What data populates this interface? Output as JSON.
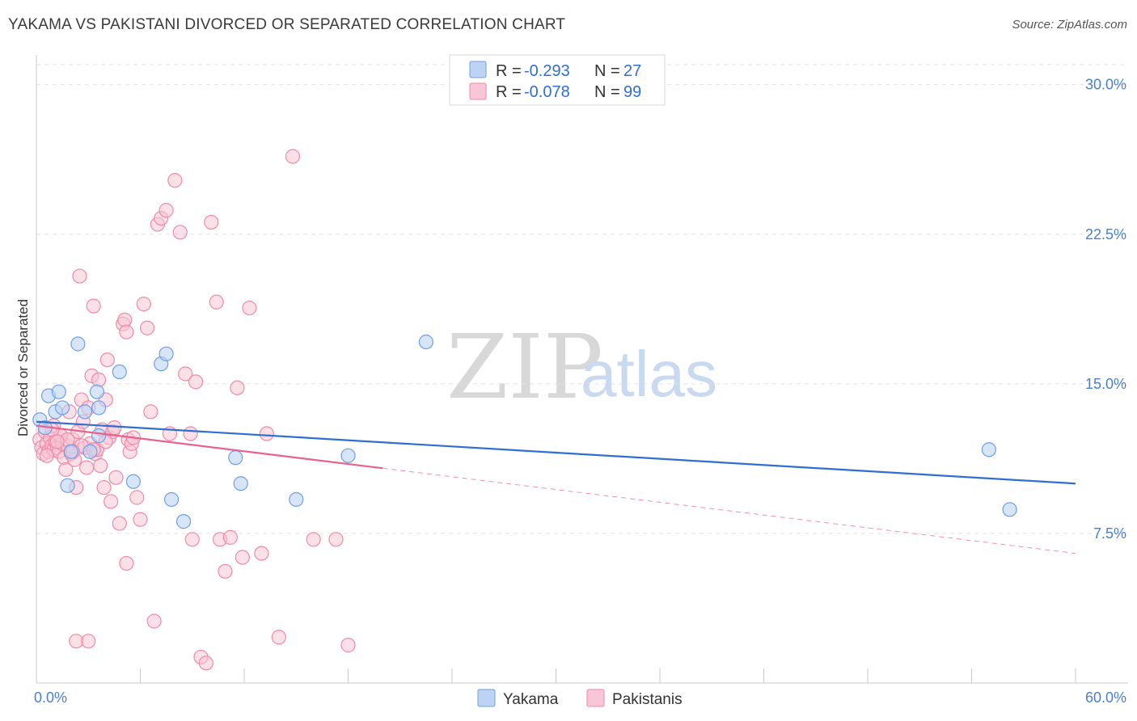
{
  "title": "YAKAMA VS PAKISTANI DIVORCED OR SEPARATED CORRELATION CHART",
  "source": "Source: ZipAtlas.com",
  "watermark": {
    "zip": "ZIP",
    "atlas": "atlas"
  },
  "colors": {
    "yakama": "#6f9fe6",
    "yakama_fill": "#bcd3f5",
    "yakama_line": "#2f6fcf",
    "pakistanis": "#ef8aaa",
    "pakistanis_fill": "#f8c6d6",
    "pakistanis_line": "#e8628e"
  },
  "legend": {
    "rows": [
      {
        "r_label": "R =",
        "r_value": "-0.293",
        "n_label": "N =",
        "n_value": "27"
      },
      {
        "r_label": "R =",
        "r_value": "-0.078",
        "n_label": "N =",
        "n_value": "99"
      }
    ]
  },
  "bottom_legend": [
    "Yakama",
    "Pakistanis"
  ],
  "chart_data": {
    "type": "scatter",
    "title": "YAKAMA VS PAKISTANI DIVORCED OR SEPARATED CORRELATION CHART",
    "xlabel": "",
    "ylabel": "Divorced or Separated",
    "xlim": [
      0,
      60
    ],
    "ylim": [
      0,
      31
    ],
    "x_tick_labels": [
      "0.0%",
      "60.0%"
    ],
    "y_ticks": [
      7.5,
      15.0,
      22.5,
      30.0
    ],
    "y_tick_labels": [
      "7.5%",
      "15.0%",
      "22.5%",
      "30.0%"
    ],
    "series": [
      {
        "name": "Yakama",
        "r": -0.293,
        "n": 27,
        "trend": {
          "x": [
            0,
            60
          ],
          "y": [
            13.1,
            10.0
          ],
          "dashed_from": null
        },
        "points": [
          [
            0.2,
            13.2
          ],
          [
            0.5,
            12.8
          ],
          [
            0.7,
            14.4
          ],
          [
            1.1,
            13.6
          ],
          [
            1.3,
            14.6
          ],
          [
            1.5,
            13.8
          ],
          [
            1.8,
            9.9
          ],
          [
            2.0,
            11.6
          ],
          [
            2.4,
            17.0
          ],
          [
            2.8,
            13.6
          ],
          [
            3.1,
            11.6
          ],
          [
            3.5,
            14.6
          ],
          [
            3.6,
            12.4
          ],
          [
            3.6,
            13.8
          ],
          [
            4.8,
            15.6
          ],
          [
            5.6,
            10.1
          ],
          [
            7.2,
            16.0
          ],
          [
            7.5,
            16.5
          ],
          [
            7.8,
            9.2
          ],
          [
            8.5,
            8.1
          ],
          [
            11.5,
            11.3
          ],
          [
            11.8,
            10.0
          ],
          [
            15.0,
            9.2
          ],
          [
            18.0,
            11.4
          ],
          [
            22.5,
            17.1
          ],
          [
            55.0,
            11.7
          ],
          [
            56.2,
            8.7
          ]
        ]
      },
      {
        "name": "Pakistanis",
        "r": -0.078,
        "n": 99,
        "trend": {
          "x": [
            0,
            60
          ],
          "y": [
            12.9,
            6.5
          ],
          "dashed_from": 20
        },
        "points": [
          [
            0.2,
            12.2
          ],
          [
            0.3,
            11.8
          ],
          [
            0.4,
            11.5
          ],
          [
            0.5,
            12.6
          ],
          [
            0.6,
            12.0
          ],
          [
            0.7,
            11.6
          ],
          [
            0.8,
            12.3
          ],
          [
            0.9,
            11.9
          ],
          [
            1.0,
            11.7
          ],
          [
            1.0,
            12.9
          ],
          [
            1.1,
            12.1
          ],
          [
            1.2,
            11.8
          ],
          [
            1.3,
            11.6
          ],
          [
            1.4,
            12.4
          ],
          [
            1.5,
            12.0
          ],
          [
            1.6,
            11.3
          ],
          [
            1.7,
            10.7
          ],
          [
            1.8,
            11.9
          ],
          [
            1.9,
            13.6
          ],
          [
            2.0,
            11.5
          ],
          [
            2.1,
            12.2
          ],
          [
            2.2,
            11.2
          ],
          [
            2.3,
            9.8
          ],
          [
            2.4,
            12.6
          ],
          [
            2.5,
            20.4
          ],
          [
            2.6,
            14.2
          ],
          [
            2.7,
            13.1
          ],
          [
            2.8,
            11.8
          ],
          [
            2.9,
            10.8
          ],
          [
            3.0,
            13.8
          ],
          [
            3.1,
            12.0
          ],
          [
            3.2,
            15.4
          ],
          [
            3.3,
            18.9
          ],
          [
            3.4,
            11.5
          ],
          [
            3.5,
            11.7
          ],
          [
            3.6,
            15.2
          ],
          [
            3.7,
            10.9
          ],
          [
            3.8,
            12.7
          ],
          [
            3.9,
            9.8
          ],
          [
            4.0,
            14.2
          ],
          [
            4.1,
            16.2
          ],
          [
            4.2,
            12.3
          ],
          [
            4.3,
            9.1
          ],
          [
            4.4,
            12.6
          ],
          [
            4.5,
            12.8
          ],
          [
            4.6,
            10.3
          ],
          [
            4.8,
            8.0
          ],
          [
            5.0,
            18.0
          ],
          [
            5.1,
            18.2
          ],
          [
            5.2,
            17.6
          ],
          [
            5.3,
            12.2
          ],
          [
            5.4,
            11.6
          ],
          [
            5.5,
            12.0
          ],
          [
            5.6,
            12.3
          ],
          [
            5.8,
            9.3
          ],
          [
            6.0,
            8.2
          ],
          [
            6.2,
            19.0
          ],
          [
            6.4,
            17.8
          ],
          [
            6.6,
            13.6
          ],
          [
            6.8,
            3.1
          ],
          [
            7.0,
            23.0
          ],
          [
            7.2,
            23.3
          ],
          [
            7.5,
            23.7
          ],
          [
            7.7,
            12.5
          ],
          [
            8.0,
            25.2
          ],
          [
            8.3,
            22.6
          ],
          [
            8.6,
            15.5
          ],
          [
            8.9,
            12.5
          ],
          [
            9.2,
            15.1
          ],
          [
            9.5,
            1.3
          ],
          [
            9.8,
            1.0
          ],
          [
            10.1,
            23.1
          ],
          [
            10.4,
            19.1
          ],
          [
            10.6,
            7.2
          ],
          [
            10.9,
            5.6
          ],
          [
            11.2,
            7.3
          ],
          [
            11.6,
            14.8
          ],
          [
            11.9,
            6.3
          ],
          [
            12.3,
            18.8
          ],
          [
            13.0,
            6.5
          ],
          [
            13.3,
            12.5
          ],
          [
            14.8,
            26.4
          ],
          [
            14.0,
            2.3
          ],
          [
            16.0,
            7.2
          ],
          [
            17.3,
            7.2
          ],
          [
            18.0,
            1.9
          ],
          [
            2.3,
            2.1
          ],
          [
            3.0,
            2.1
          ],
          [
            5.2,
            6.0
          ],
          [
            9.0,
            7.2
          ],
          [
            1.4,
            12.4
          ],
          [
            0.9,
            12.7
          ],
          [
            1.8,
            12.2
          ],
          [
            2.6,
            11.9
          ],
          [
            3.3,
            11.7
          ],
          [
            0.6,
            11.4
          ],
          [
            1.2,
            12.1
          ],
          [
            2.1,
            11.6
          ],
          [
            4.0,
            12.1
          ]
        ]
      }
    ]
  }
}
